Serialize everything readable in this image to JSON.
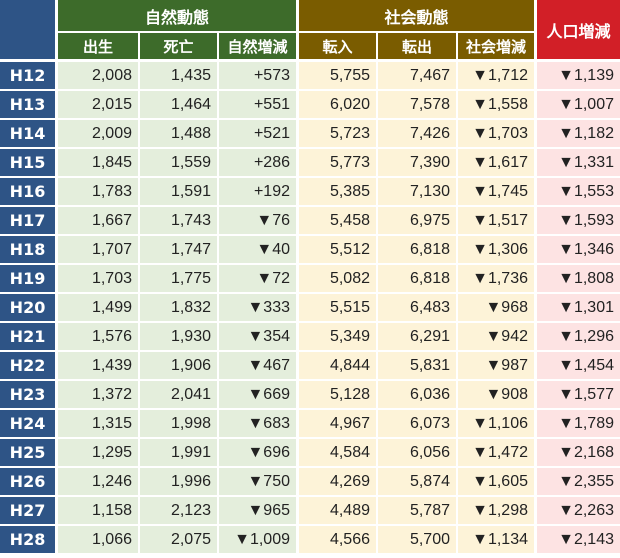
{
  "headers": {
    "natural": "自然動態",
    "social": "社会動態",
    "population": "人口増減",
    "natural_cols": [
      "出生",
      "死亡",
      "自然増減"
    ],
    "social_cols": [
      "転入",
      "転出",
      "社会増減"
    ]
  },
  "rows": [
    {
      "year": "H12",
      "births": "2,008",
      "deaths": "1,435",
      "natural": "+573",
      "in": "5,755",
      "out": "7,467",
      "social": "▼1,712",
      "pop": "▼1,139"
    },
    {
      "year": "H13",
      "births": "2,015",
      "deaths": "1,464",
      "natural": "+551",
      "in": "6,020",
      "out": "7,578",
      "social": "▼1,558",
      "pop": "▼1,007"
    },
    {
      "year": "H14",
      "births": "2,009",
      "deaths": "1,488",
      "natural": "+521",
      "in": "5,723",
      "out": "7,426",
      "social": "▼1,703",
      "pop": "▼1,182"
    },
    {
      "year": "H15",
      "births": "1,845",
      "deaths": "1,559",
      "natural": "+286",
      "in": "5,773",
      "out": "7,390",
      "social": "▼1,617",
      "pop": "▼1,331"
    },
    {
      "year": "H16",
      "births": "1,783",
      "deaths": "1,591",
      "natural": "+192",
      "in": "5,385",
      "out": "7,130",
      "social": "▼1,745",
      "pop": "▼1,553"
    },
    {
      "year": "H17",
      "births": "1,667",
      "deaths": "1,743",
      "natural": "▼76",
      "in": "5,458",
      "out": "6,975",
      "social": "▼1,517",
      "pop": "▼1,593"
    },
    {
      "year": "H18",
      "births": "1,707",
      "deaths": "1,747",
      "natural": "▼40",
      "in": "5,512",
      "out": "6,818",
      "social": "▼1,306",
      "pop": "▼1,346"
    },
    {
      "year": "H19",
      "births": "1,703",
      "deaths": "1,775",
      "natural": "▼72",
      "in": "5,082",
      "out": "6,818",
      "social": "▼1,736",
      "pop": "▼1,808"
    },
    {
      "year": "H20",
      "births": "1,499",
      "deaths": "1,832",
      "natural": "▼333",
      "in": "5,515",
      "out": "6,483",
      "social": "▼968",
      "pop": "▼1,301"
    },
    {
      "year": "H21",
      "births": "1,576",
      "deaths": "1,930",
      "natural": "▼354",
      "in": "5,349",
      "out": "6,291",
      "social": "▼942",
      "pop": "▼1,296"
    },
    {
      "year": "H22",
      "births": "1,439",
      "deaths": "1,906",
      "natural": "▼467",
      "in": "4,844",
      "out": "5,831",
      "social": "▼987",
      "pop": "▼1,454"
    },
    {
      "year": "H23",
      "births": "1,372",
      "deaths": "2,041",
      "natural": "▼669",
      "in": "5,128",
      "out": "6,036",
      "social": "▼908",
      "pop": "▼1,577"
    },
    {
      "year": "H24",
      "births": "1,315",
      "deaths": "1,998",
      "natural": "▼683",
      "in": "4,967",
      "out": "6,073",
      "social": "▼1,106",
      "pop": "▼1,789"
    },
    {
      "year": "H25",
      "births": "1,295",
      "deaths": "1,991",
      "natural": "▼696",
      "in": "4,584",
      "out": "6,056",
      "social": "▼1,472",
      "pop": "▼2,168"
    },
    {
      "year": "H26",
      "births": "1,246",
      "deaths": "1,996",
      "natural": "▼750",
      "in": "4,269",
      "out": "5,874",
      "social": "▼1,605",
      "pop": "▼2,355"
    },
    {
      "year": "H27",
      "births": "1,158",
      "deaths": "2,123",
      "natural": "▼965",
      "in": "4,489",
      "out": "5,787",
      "social": "▼1,298",
      "pop": "▼2,263"
    },
    {
      "year": "H28",
      "births": "1,066",
      "deaths": "2,075",
      "natural": "▼1,009",
      "in": "4,566",
      "out": "5,700",
      "social": "▼1,134",
      "pop": "▼2,143"
    }
  ]
}
